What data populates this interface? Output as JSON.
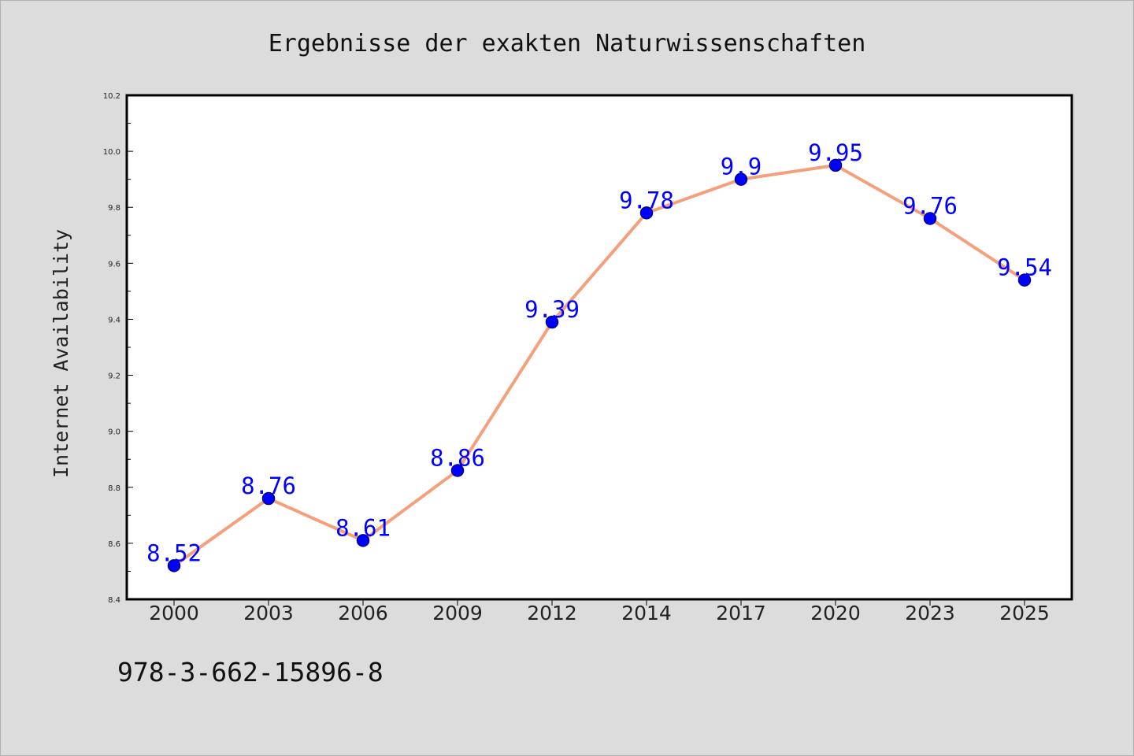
{
  "chart_data": {
    "type": "line",
    "title": "Ergebnisse der exakten Naturwissenschaften",
    "xlabel": "",
    "ylabel": "Internet Availability",
    "categories": [
      "2000",
      "2003",
      "2006",
      "2009",
      "2012",
      "2014",
      "2017",
      "2020",
      "2023",
      "2025"
    ],
    "series": [
      {
        "values": [
          8.52,
          8.76,
          8.61,
          8.86,
          9.39,
          9.78,
          9.9,
          9.95,
          9.76,
          9.54
        ]
      }
    ],
    "data_labels": [
      "8.52",
      "8.76",
      "8.61",
      "8.86",
      "9.39",
      "9.78",
      "9.9",
      "9.95",
      "9.76",
      "9.54"
    ],
    "ylim": [
      8.4,
      10.2
    ],
    "yticks": [
      "8.4",
      "8.6",
      "8.8",
      "9.0",
      "9.2",
      "9.4",
      "9.6",
      "9.8",
      "10.0",
      "10.2"
    ],
    "grid": false,
    "legend": "none",
    "colors": {
      "line": "#f4a07c",
      "marker": "#0000ff",
      "marker_edge": "#00008b",
      "data_label": "#0000ff",
      "background": "#dcdcdc",
      "plot_area": "#ffffff"
    }
  },
  "footer": {
    "isbn": "978-3-662-15896-8"
  }
}
